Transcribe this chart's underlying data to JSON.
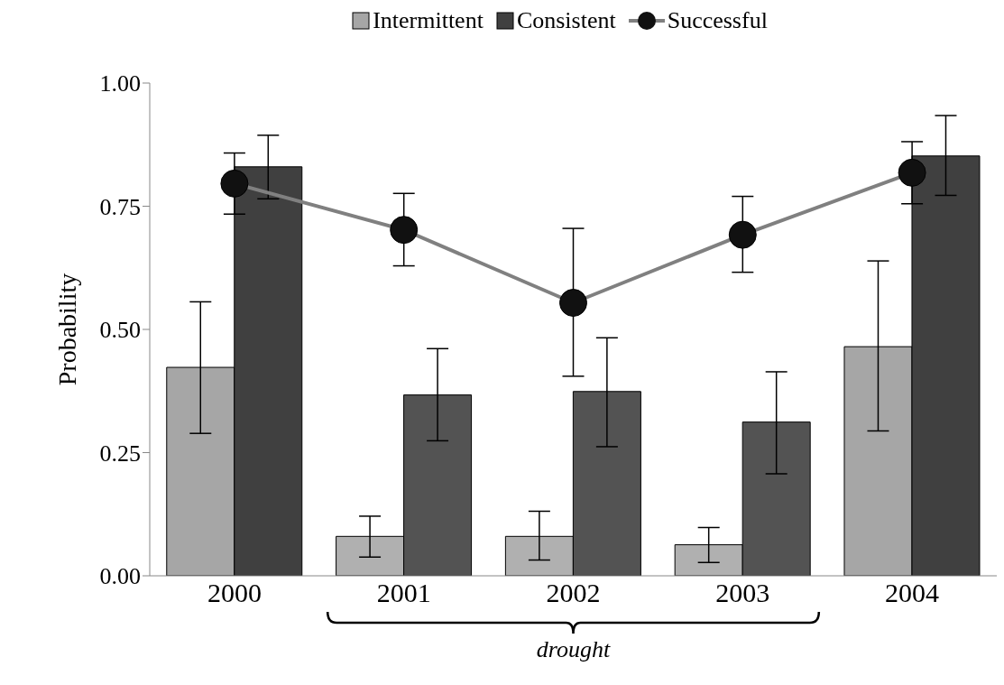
{
  "chart_data": {
    "type": "bar",
    "ylabel": "Probability",
    "categories": [
      "2000",
      "2001",
      "2002",
      "2003",
      "2004"
    ],
    "series": [
      {
        "name": "Intermittent",
        "color": "#a6a6a6",
        "colors": [
          "#a6a6a6",
          "#b0b0b0",
          "#b0b0b0",
          "#b0b0b0",
          "#a6a6a6"
        ],
        "values": [
          0.423,
          0.08,
          0.08,
          0.063,
          0.465
        ],
        "errors": [
          [
            0.289,
            0.556
          ],
          [
            0.038,
            0.121
          ],
          [
            0.032,
            0.131
          ],
          [
            0.027,
            0.098
          ],
          [
            0.294,
            0.639
          ]
        ]
      },
      {
        "name": "Consistent",
        "color": "#404040",
        "colors": [
          "#404040",
          "#535353",
          "#535353",
          "#535353",
          "#404040"
        ],
        "values": [
          0.83,
          0.367,
          0.374,
          0.312,
          0.852
        ],
        "errors": [
          [
            0.765,
            0.894
          ],
          [
            0.274,
            0.461
          ],
          [
            0.262,
            0.483
          ],
          [
            0.207,
            0.414
          ],
          [
            0.772,
            0.934
          ]
        ]
      },
      {
        "name": "Successful",
        "type": "line",
        "color": "#808080",
        "marker": "circle",
        "values": [
          0.796,
          0.702,
          0.554,
          0.692,
          0.818
        ],
        "errors": [
          [
            0.734,
            0.858
          ],
          [
            0.629,
            0.776
          ],
          [
            0.405,
            0.705
          ],
          [
            0.616,
            0.77
          ],
          [
            0.755,
            0.881
          ]
        ]
      }
    ],
    "ylim": [
      0,
      1
    ],
    "yticks": [
      {
        "value": 0,
        "label": "0.00"
      },
      {
        "value": 0.25,
        "label": "0.25"
      },
      {
        "value": 0.5,
        "label": "0.50"
      },
      {
        "value": 0.75,
        "label": "0.75"
      },
      {
        "value": 1,
        "label": "1.00"
      }
    ],
    "grid": false,
    "legend": "top",
    "annotations": [
      "drought"
    ]
  }
}
